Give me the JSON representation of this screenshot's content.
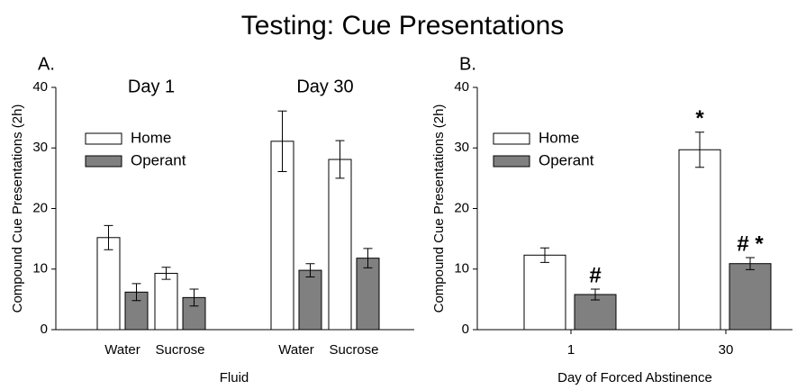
{
  "title": "Testing: Cue Presentations",
  "chart_data": [
    {
      "type": "bar",
      "panel": "A.",
      "ylabel": "Compound Cue Presentations (2h)",
      "xlabel": "Fluid",
      "group_labels": [
        "Day 1",
        "Day 30"
      ],
      "categories": [
        "Water",
        "Sucrose",
        "Water",
        "Sucrose"
      ],
      "series": [
        {
          "name": "Home",
          "color": "#ffffff",
          "values": [
            15.2,
            9.3,
            31.1,
            28.1
          ],
          "errors": [
            2.0,
            1.0,
            5.0,
            3.1
          ]
        },
        {
          "name": "Operant",
          "color": "#808080",
          "values": [
            6.2,
            5.3,
            9.8,
            11.8
          ],
          "errors": [
            1.4,
            1.4,
            1.1,
            1.6
          ]
        }
      ],
      "ylim": [
        0,
        40
      ],
      "yticks": [
        0,
        10,
        20,
        30,
        40
      ]
    },
    {
      "type": "bar",
      "panel": "B.",
      "ylabel": "Compound Cue Presentations (2h)",
      "xlabel": "Day of Forced Abstinence",
      "categories": [
        "1",
        "30"
      ],
      "series": [
        {
          "name": "Home",
          "color": "#ffffff",
          "values": [
            12.3,
            29.7
          ],
          "errors": [
            1.2,
            2.9
          ],
          "annotations": [
            null,
            "*"
          ]
        },
        {
          "name": "Operant",
          "color": "#808080",
          "values": [
            5.8,
            10.9
          ],
          "errors": [
            0.9,
            1.0
          ],
          "annotations": [
            "#",
            "# *"
          ]
        }
      ],
      "ylim": [
        0,
        40
      ],
      "yticks": [
        0,
        10,
        20,
        30,
        40
      ]
    }
  ]
}
